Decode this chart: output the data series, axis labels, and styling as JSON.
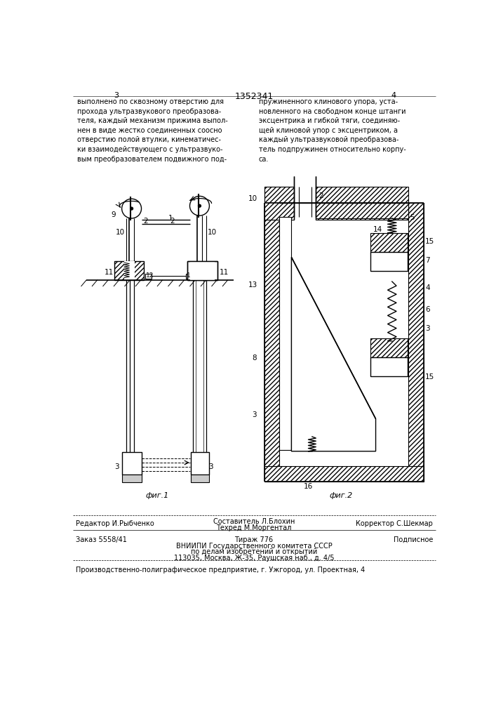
{
  "page_number_left": "3",
  "page_number_center": "1352341",
  "page_number_right": "4",
  "text_left": "выполнено по сквозному отверстию для\nпрохода ультразвукового преобразова-\nтеля, каждый механизм прижима выпол-\nнен в виде жестко соединенных соосно\nотверстию полой втулки, кинематичес-\nки взаимодействующего с ультразвуко-\nвым преобразователем подвижного под-",
  "text_right": "пружиненного клинового упора, уста-\nновленного на свободном конце штанги\nэксцентрика и гибкой тяги, соединяю-\nщей клиновой упор с эксцентриком, а\nкаждый ультразвуковой преобразова-\nтель подпружинен относительно корпу-\nса.",
  "fig1_caption": "фиг.1",
  "fig2_caption": "фиг.2",
  "footer_line1_left": "Редактор И.Рыбченко",
  "footer_line1_center1": "Составитель Л.Блохин",
  "footer_line1_center2": "Техред М.Моргентал",
  "footer_line1_right": "Корректор С.Шекмар",
  "footer_line2_left": "Заказ 5558/41",
  "footer_line2_center": "Тираж 776",
  "footer_line2_right": "Подписное",
  "footer_line3": "ВНИИПИ Государственного комитета СССР",
  "footer_line4": "по делам изобретений и открытий",
  "footer_line5": "113035, Москва, Ж-35, Раушская наб., д. 4/5",
  "footer_line6": "Производственно-полиграфическое предприятие, г. Ужгород, ул. Проектная, 4",
  "bg_color": "#ffffff"
}
